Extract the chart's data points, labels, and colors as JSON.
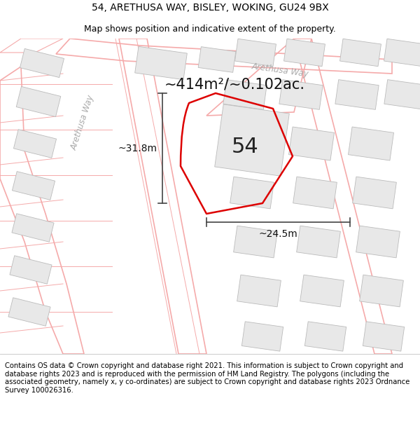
{
  "title_line1": "54, ARETHUSA WAY, BISLEY, WOKING, GU24 9BX",
  "title_line2": "Map shows position and indicative extent of the property.",
  "area_label": "~414m²/~0.102ac.",
  "plot_number": "54",
  "dim_width": "~24.5m",
  "dim_height": "~31.8m",
  "footer_text": "Contains OS data © Crown copyright and database right 2021. This information is subject to Crown copyright and database rights 2023 and is reproduced with the permission of HM Land Registry. The polygons (including the associated geometry, namely x, y co-ordinates) are subject to Crown copyright and database rights 2023 Ordnance Survey 100026316.",
  "bg_color": "#ffffff",
  "map_bg": "#ffffff",
  "road_line_color": "#f5aaaa",
  "plot_edge_color": "#dd0000",
  "plot_edge_width": 1.8,
  "building_fill": "#e8e8e8",
  "building_edge": "#bbbbbb",
  "building_lw": 0.6,
  "street_text_color": "#aaaaaa",
  "title_fontsize": 10,
  "subtitle_fontsize": 9,
  "footer_fontsize": 7.2,
  "area_fontsize": 15,
  "number_fontsize": 22,
  "dim_fontsize": 10
}
